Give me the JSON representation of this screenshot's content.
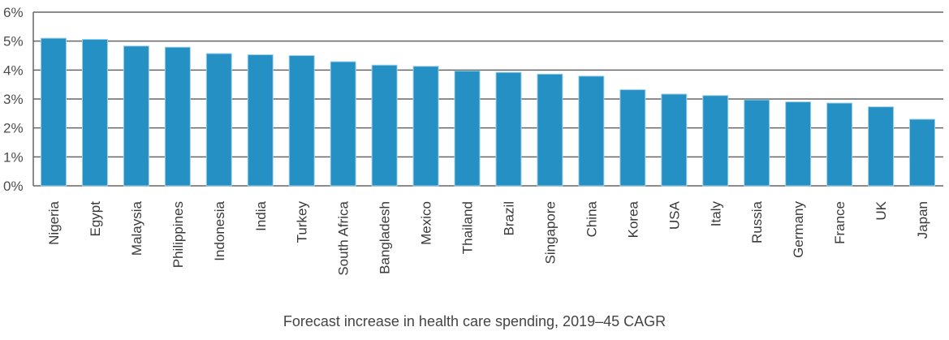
{
  "chart_data": {
    "type": "bar",
    "title": "",
    "xlabel": "Forecast increase in health care spending, 2019–45 CAGR",
    "ylabel": "",
    "ylim": [
      0,
      6
    ],
    "yticks": [
      0,
      1,
      2,
      3,
      4,
      5,
      6
    ],
    "ytick_labels": [
      "0%",
      "1%",
      "2%",
      "3%",
      "4%",
      "5%",
      "6%"
    ],
    "grid": true,
    "legend": "none",
    "bar_color": "#2490C3",
    "categories": [
      "Nigeria",
      "Egypt",
      "Malaysia",
      "Philippines",
      "Indonesia",
      "India",
      "Turkey",
      "South Africa",
      "Bangladesh",
      "Mexico",
      "Thailand",
      "Brazil",
      "Singapore",
      "China",
      "Korea",
      "USA",
      "Italy",
      "Russia",
      "Germany",
      "France",
      "UK",
      "Japan"
    ],
    "values": [
      5.1,
      5.06,
      4.83,
      4.79,
      4.57,
      4.53,
      4.5,
      4.29,
      4.17,
      4.13,
      3.97,
      3.92,
      3.86,
      3.79,
      3.32,
      3.17,
      3.12,
      2.97,
      2.9,
      2.86,
      2.73,
      2.3
    ],
    "unit": "%"
  }
}
